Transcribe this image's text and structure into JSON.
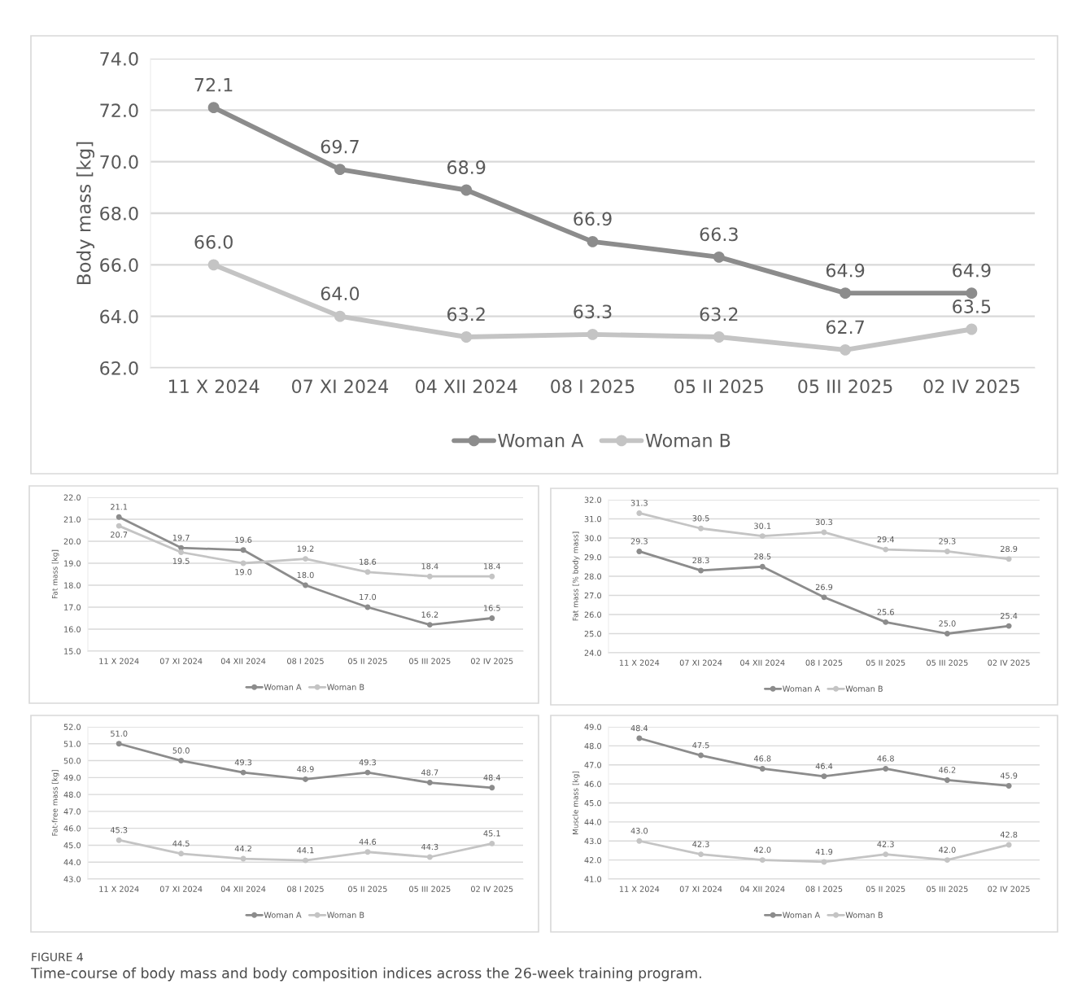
{
  "chart_data": [
    {
      "type": "line",
      "ylabel": "Body mass [kg]",
      "categories": [
        "11 X 2024",
        "07 XI 2024",
        "04 XII 2024",
        "08 I 2025",
        "05 II 2025",
        "05 III 2025",
        "02 IV 2025"
      ],
      "ylim": [
        62.0,
        74.0
      ],
      "yticks": [
        {
          "value": 62,
          "label": "62.0"
        },
        {
          "value": 64,
          "label": "64.0"
        },
        {
          "value": 66,
          "label": "66.0"
        },
        {
          "value": 68,
          "label": "68.0"
        },
        {
          "value": 70,
          "label": "70.0"
        },
        {
          "value": 72,
          "label": "72.0"
        },
        {
          "value": 74,
          "label": "74.0"
        }
      ],
      "grid": "y",
      "legend": "bottom",
      "marker": "circle",
      "line_style": "solid",
      "series": [
        {
          "name": "Woman A",
          "color": "#8c8c8c",
          "values": [
            72.1,
            69.7,
            68.9,
            66.9,
            66.3,
            64.9,
            64.9
          ],
          "value_labels": [
            "72.1",
            "69.7",
            "68.9",
            "66.9",
            "66.3",
            "64.9",
            "64.9"
          ]
        },
        {
          "name": "Woman B",
          "color": "#c4c4c4",
          "values": [
            66.0,
            64.0,
            63.2,
            63.3,
            63.2,
            62.7,
            63.5
          ],
          "value_labels": [
            "66.0",
            "64.0",
            "63.2",
            "63.3",
            "63.2",
            "62.7",
            "63.5"
          ]
        }
      ],
      "annotations": [
        "FIGURE 4",
        "Time-course of body mass and body composition indices across the 26-week training program."
      ]
    },
    {
      "type": "line",
      "ylabel": "Fat mass [kg]",
      "categories": [
        "11 X 2024",
        "07 XI 2024",
        "04 XII 2024",
        "08 I 2025",
        "05 II 2025",
        "05 III 2025",
        "02 IV 2025"
      ],
      "ylim": [
        15.0,
        22.0
      ],
      "yticks": [
        {
          "value": 15,
          "label": "15.0"
        },
        {
          "value": 16,
          "label": "16.0"
        },
        {
          "value": 17,
          "label": "17.0"
        },
        {
          "value": 18,
          "label": "18.0"
        },
        {
          "value": 19,
          "label": "19.0"
        },
        {
          "value": 20,
          "label": "20.0"
        },
        {
          "value": 21,
          "label": "21.0"
        },
        {
          "value": 22,
          "label": "22.0"
        }
      ],
      "grid": "y",
      "legend": "bottom",
      "marker": "circle",
      "line_style": "solid",
      "series": [
        {
          "name": "Woman A",
          "color": "#8c8c8c",
          "values": [
            21.1,
            19.7,
            19.6,
            18.0,
            17.0,
            16.2,
            16.5
          ],
          "value_labels": [
            "21.1",
            "19.7",
            "19.6",
            "18.0",
            "17.0",
            "16.2",
            "16.5"
          ]
        },
        {
          "name": "Woman B",
          "color": "#c4c4c4",
          "values": [
            20.7,
            19.5,
            19.0,
            19.2,
            18.6,
            18.4,
            18.4
          ],
          "value_labels": [
            "20.7",
            "19.5",
            "19.0",
            "19.2",
            "18.6",
            "18.4",
            "18.4"
          ]
        }
      ]
    },
    {
      "type": "line",
      "ylabel": "Fat mass [% body mass]",
      "categories": [
        "11 X 2024",
        "07 XI 2024",
        "04 XII 2024",
        "08 I 2025",
        "05 II 2025",
        "05 III 2025",
        "02 IV 2025"
      ],
      "ylim": [
        24.0,
        32.0
      ],
      "yticks": [
        {
          "value": 24,
          "label": "24.0"
        },
        {
          "value": 25,
          "label": "25.0"
        },
        {
          "value": 26,
          "label": "26.0"
        },
        {
          "value": 27,
          "label": "27.0"
        },
        {
          "value": 28,
          "label": "28.0"
        },
        {
          "value": 29,
          "label": "29.0"
        },
        {
          "value": 30,
          "label": "30.0"
        },
        {
          "value": 31,
          "label": "31.0"
        },
        {
          "value": 32,
          "label": "32.0"
        }
      ],
      "grid": "y",
      "legend": "bottom",
      "marker": "circle",
      "line_style": "solid",
      "series": [
        {
          "name": "Woman A",
          "color": "#8c8c8c",
          "values": [
            29.3,
            28.3,
            28.5,
            26.9,
            25.6,
            25.0,
            25.4
          ],
          "value_labels": [
            "29.3",
            "28.3",
            "28.5",
            "26.9",
            "25.6",
            "25.0",
            "25.4"
          ]
        },
        {
          "name": "Woman B",
          "color": "#c4c4c4",
          "values": [
            31.3,
            30.5,
            30.1,
            30.3,
            29.4,
            29.3,
            28.9
          ],
          "value_labels": [
            "31.3",
            "30.5",
            "30.1",
            "30.3",
            "29.4",
            "29.3",
            "28.9"
          ]
        }
      ]
    },
    {
      "type": "line",
      "ylabel": "Fat-free mass [kg]",
      "categories": [
        "11 X 2024",
        "07 XI 2024",
        "04 XII 2024",
        "08 I 2025",
        "05 II 2025",
        "05 III 2025",
        "02 IV 2025"
      ],
      "ylim": [
        43.0,
        52.0
      ],
      "yticks": [
        {
          "value": 43,
          "label": "43.0"
        },
        {
          "value": 44,
          "label": "44.0"
        },
        {
          "value": 45,
          "label": "45.0"
        },
        {
          "value": 46,
          "label": "46.0"
        },
        {
          "value": 47,
          "label": "47.0"
        },
        {
          "value": 48,
          "label": "48.0"
        },
        {
          "value": 49,
          "label": "49.0"
        },
        {
          "value": 50,
          "label": "50.0"
        },
        {
          "value": 51,
          "label": "51.0"
        },
        {
          "value": 52,
          "label": "52.0"
        }
      ],
      "grid": "y",
      "legend": "bottom",
      "marker": "circle",
      "line_style": "solid",
      "series": [
        {
          "name": "Woman A",
          "color": "#8c8c8c",
          "values": [
            51.0,
            50.0,
            49.3,
            48.9,
            49.3,
            48.7,
            48.4
          ],
          "value_labels": [
            "51.0",
            "50.0",
            "49.3",
            "48.9",
            "49.3",
            "48.7",
            "48.4"
          ]
        },
        {
          "name": "Woman B",
          "color": "#c4c4c4",
          "values": [
            45.3,
            44.5,
            44.2,
            44.1,
            44.6,
            44.3,
            45.1
          ],
          "value_labels": [
            "45.3",
            "44.5",
            "44.2",
            "44.1",
            "44.6",
            "44.3",
            "45.1"
          ]
        }
      ]
    },
    {
      "type": "line",
      "ylabel": "Muscle mass [kg]",
      "categories": [
        "11 X 2024",
        "07 XI 2024",
        "04 XII 2024",
        "08 I 2025",
        "05 II 2025",
        "05 III 2025",
        "02 IV 2025"
      ],
      "ylim": [
        41.0,
        49.0
      ],
      "yticks": [
        {
          "value": 41,
          "label": "41.0"
        },
        {
          "value": 42,
          "label": "42.0"
        },
        {
          "value": 43,
          "label": "43.0"
        },
        {
          "value": 44,
          "label": "44.0"
        },
        {
          "value": 45,
          "label": "45.0"
        },
        {
          "value": 46,
          "label": "46.0"
        },
        {
          "value": 47,
          "label": "47.0"
        },
        {
          "value": 48,
          "label": "48.0"
        },
        {
          "value": 49,
          "label": "49.0"
        }
      ],
      "grid": "y",
      "legend": "bottom",
      "marker": "circle",
      "line_style": "solid",
      "series": [
        {
          "name": "Woman A",
          "color": "#8c8c8c",
          "values": [
            48.4,
            47.5,
            46.8,
            46.4,
            46.8,
            46.2,
            45.9
          ],
          "value_labels": [
            "48.4",
            "47.5",
            "46.8",
            "46.4",
            "46.8",
            "46.2",
            "45.9"
          ]
        },
        {
          "name": "Woman B",
          "color": "#c4c4c4",
          "values": [
            43.0,
            42.3,
            42.0,
            41.9,
            42.3,
            42.0,
            42.8
          ],
          "value_labels": [
            "43.0",
            "42.3",
            "42.0",
            "41.9",
            "42.3",
            "42.0",
            "42.8"
          ]
        }
      ]
    }
  ]
}
